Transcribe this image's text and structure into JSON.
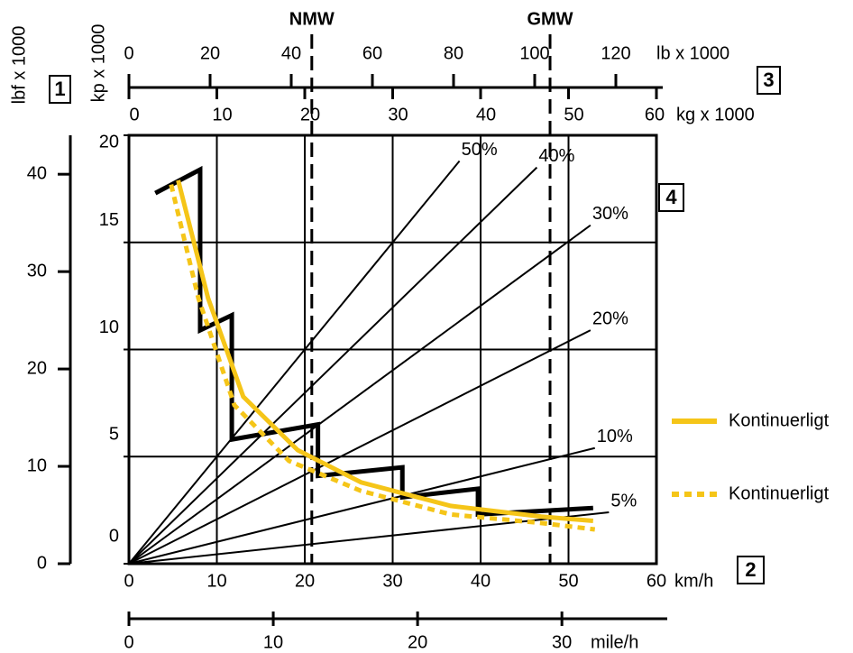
{
  "chart_data": {
    "type": "line",
    "xlabel": "km/h",
    "xlim": [
      0,
      60
    ],
    "xticks": [
      0,
      10,
      20,
      30,
      40,
      50,
      60
    ],
    "ylabel": "kp x 1000",
    "ylim": [
      0,
      20
    ],
    "yticks": [
      0,
      5,
      10,
      15,
      20
    ],
    "y2label": "lbf x 1000",
    "y2lim": [
      0,
      44
    ],
    "y2ticks": [
      0,
      10,
      20,
      30,
      40
    ],
    "x2label": "kg x 1000",
    "x2lim": [
      0,
      60
    ],
    "x2ticks": [
      0,
      10,
      20,
      30,
      40,
      50,
      60
    ],
    "x3label": "lb x 1000",
    "x3lim": [
      0,
      130
    ],
    "x3ticks": [
      0,
      20,
      40,
      60,
      80,
      100,
      120
    ],
    "x4label": "mile/h",
    "x4lim": [
      0,
      37.3
    ],
    "x4ticks": [
      0,
      10,
      20,
      30
    ],
    "grid": true,
    "series": [
      {
        "color": "#000000",
        "style": "solid",
        "x": [
          3.0,
          8.1,
          8.1,
          11.7,
          11.7,
          21.5,
          21.5,
          31.1,
          31.1,
          39.7,
          39.7,
          52.8
        ],
        "values": [
          17.3,
          18.4,
          10.9,
          11.6,
          5.8,
          6.5,
          4.1,
          4.5,
          3.1,
          3.5,
          2.3,
          2.6
        ]
      },
      {
        "name": "Kontinuerligt",
        "color": "#f5c518",
        "style": "solid",
        "x": [
          5.6,
          9.0,
          13.0,
          19.2,
          26.4,
          36.6,
          46.9,
          52.8
        ],
        "values": [
          17.9,
          12.4,
          7.8,
          5.3,
          3.8,
          2.7,
          2.2,
          2.0
        ]
      },
      {
        "name": "Kontinuerligt",
        "color": "#f5c518",
        "style": "dashed",
        "x": [
          4.8,
          7.9,
          12.0,
          18.2,
          26.4,
          36.6,
          46.9,
          53.0
        ],
        "values": [
          17.7,
          12.4,
          7.4,
          4.8,
          3.4,
          2.3,
          1.9,
          1.6
        ]
      }
    ],
    "grade_lines": [
      {
        "label": "50%",
        "x": 37.6,
        "y": 18.8
      },
      {
        "label": "40%",
        "x": 46.4,
        "y": 18.5
      },
      {
        "label": "30%",
        "x": 52.5,
        "y": 15.8
      },
      {
        "label": "20%",
        "x": 52.5,
        "y": 10.9
      },
      {
        "label": "10%",
        "x": 53.0,
        "y": 5.4
      },
      {
        "label": "5%",
        "x": 54.6,
        "y": 2.4
      }
    ],
    "reference_lines": [
      {
        "label": "NMW",
        "x": 20.8
      },
      {
        "label": "GMW",
        "x": 47.9
      }
    ],
    "markers": [
      "1",
      "2",
      "3",
      "4"
    ]
  }
}
